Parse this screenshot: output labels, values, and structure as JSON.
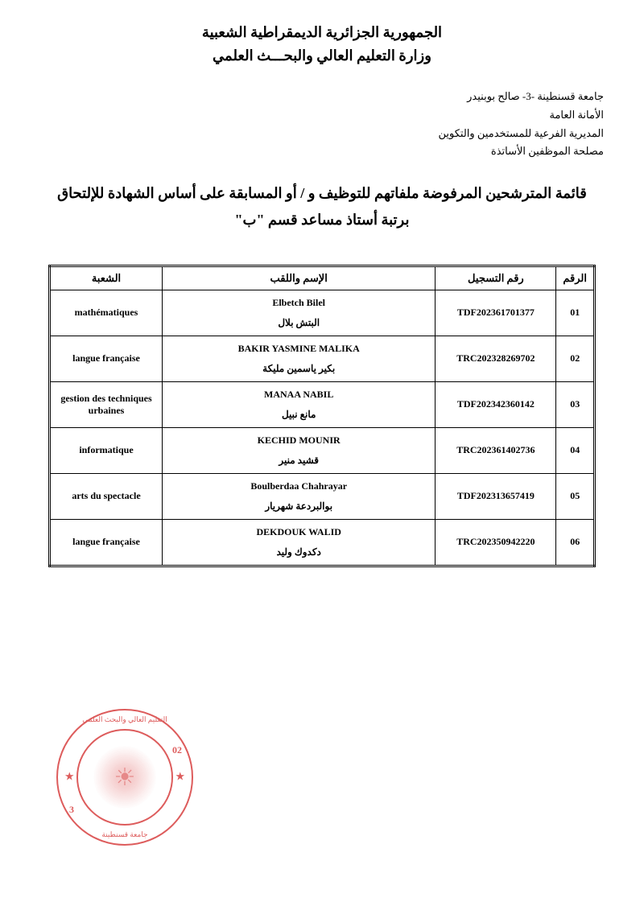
{
  "header": {
    "line1": "الجمهورية الجزائرية الديمقراطية الشعبية",
    "line2": "وزارة التعليم العالي والبحـــث العلمي"
  },
  "org_info": {
    "line1": "جامعة قسنطينة -3- صالح بوبنيدر",
    "line2": "الأمانة العامة",
    "line3": "المديرية الفرعية للمستخدمين والتكوين",
    "line4": "مصلحة الموظفين الأساتذة"
  },
  "title": {
    "line1": "قائمة المترشحين المرفوضة ملفاتهم للتوظيف و / أو المسابقة على أساس الشهادة للإلتحاق",
    "line2": "برتبة أستاذ مساعد قسم \"ب\""
  },
  "table": {
    "headers": {
      "num": "الرقم",
      "reg": "رقم التسجيل",
      "name": "الإسم واللقب",
      "dept": "الشعبة"
    },
    "rows": [
      {
        "num": "01",
        "reg": "TDF202361701377",
        "name_latin": "Elbetch Bilel",
        "name_arabic": "البتش بلال",
        "dept": "mathématiques"
      },
      {
        "num": "02",
        "reg": "TRC202328269702",
        "name_latin": "BAKIR YASMINE MALIKA",
        "name_arabic": "بكير ياسمين مليكة",
        "dept": "langue française"
      },
      {
        "num": "03",
        "reg": "TDF202342360142",
        "name_latin": "MANAA NABIL",
        "name_arabic": "مانع نبيل",
        "dept": "gestion des techniques urbaines"
      },
      {
        "num": "04",
        "reg": "TRC202361402736",
        "name_latin": "KECHID MOUNIR",
        "name_arabic": "قشيد منير",
        "dept": "informatique"
      },
      {
        "num": "05",
        "reg": "TDF202313657419",
        "name_latin": "Boulberdaa Chahrayar",
        "name_arabic": "بوالبردعة شهريار",
        "dept": "arts du spectacle"
      },
      {
        "num": "06",
        "reg": "TRC202350942220",
        "name_latin": "DEKDOUK WALID",
        "name_arabic": "دكدوك وليد",
        "dept": "langue française"
      }
    ]
  },
  "stamp": {
    "top_text": "التعليم العالي والبحث العلمي",
    "bottom_text": "جامعة قسنطينة",
    "num_left": "3",
    "num_right": "02"
  }
}
